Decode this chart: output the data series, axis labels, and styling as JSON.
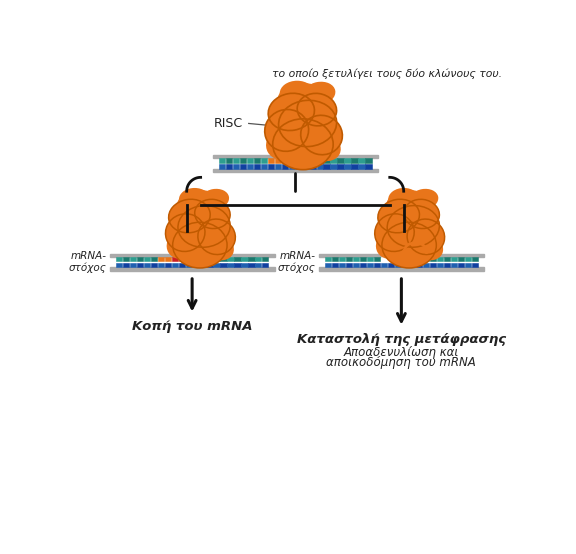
{
  "background_color": "#ffffff",
  "text_top_line1": "το οποίο ξετυλίγει τους δύο κλώνους του.",
  "risc_label": "RISC",
  "mrna_label_left": "mRNA-\nστόχος",
  "mrna_label_right": "mRNA-\nστόχος",
  "label_left": "Κοπή του mRNA",
  "label_right1": "Καταστολή της μετάφρασης",
  "label_right2": "Αποαδενυλίωση και",
  "label_right3": "αποικοδόμηση του mRNA",
  "orange": "#E8751A",
  "orange_dark": "#C05A00",
  "teal1": "#2E9E8F",
  "teal2": "#1B7A6E",
  "blue1": "#2060B0",
  "blue2": "#1040A0",
  "red_seg": "#CC2020",
  "white_seg": "#FFFFFF",
  "text_color": "#222222",
  "arrow_color": "#111111"
}
